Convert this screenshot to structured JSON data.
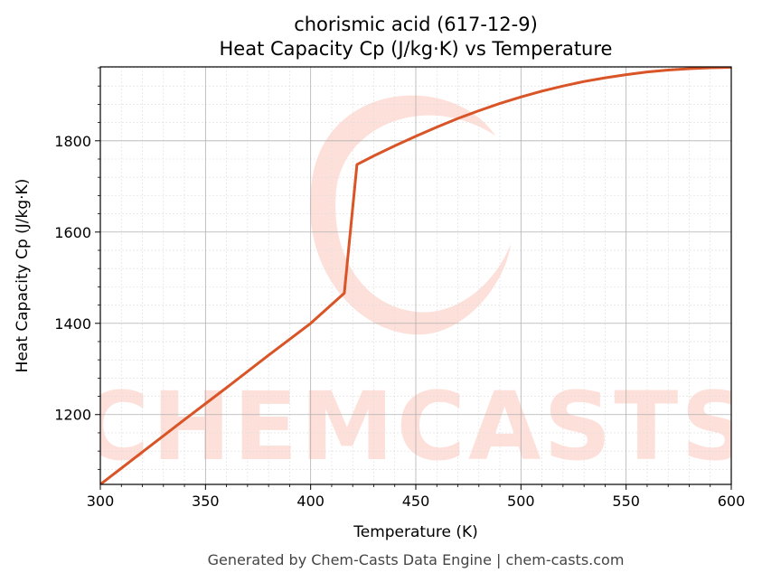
{
  "chart_data": {
    "type": "line",
    "title_line1": "chorismic acid (617-12-9)",
    "title_line2": "Heat Capacity Cp (J/kg·K) vs Temperature",
    "xlabel": "Temperature (K)",
    "ylabel": "Heat Capacity Cp (J/kg·K)",
    "xlim": [
      300,
      600
    ],
    "ylim": [
      1047,
      1962
    ],
    "x_ticks": [
      300,
      350,
      400,
      450,
      500,
      550,
      600
    ],
    "y_ticks": [
      1200,
      1400,
      1600,
      1800
    ],
    "grid": true,
    "line_color": "#d95426",
    "series": [
      {
        "x": [
          300,
          320,
          340,
          360,
          380,
          400,
          416,
          422,
          430,
          440,
          450,
          460,
          470,
          480,
          490,
          500,
          510,
          520,
          530,
          540,
          550,
          560,
          570,
          580,
          590,
          600
        ],
        "y": [
          1047,
          1118,
          1189,
          1259,
          1330,
          1400,
          1466,
          1748,
          1767,
          1789,
          1810,
          1830,
          1849,
          1866,
          1882,
          1896,
          1909,
          1920,
          1930,
          1938,
          1945,
          1951,
          1955,
          1958,
          1960,
          1961
        ]
      }
    ]
  },
  "watermark": {
    "text": "CHEMCASTS",
    "color": "#fde0d9"
  },
  "footer": {
    "text": "Generated by Chem-Casts Data Engine | chem-casts.com"
  }
}
